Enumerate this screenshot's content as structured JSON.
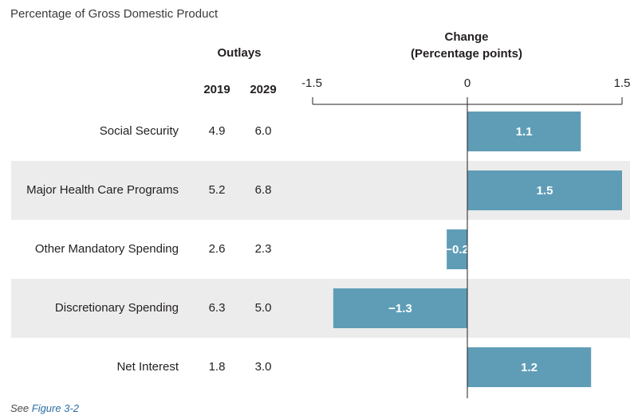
{
  "subtitle": "Percentage of Gross Domestic Product",
  "headers": {
    "outlays": "Outlays",
    "year1": "2019",
    "year2": "2029",
    "change_line1": "Change",
    "change_line2": "(Percentage points)"
  },
  "rows": [
    {
      "label": "Social Security",
      "v2019": "4.9",
      "v2029": "6.0"
    },
    {
      "label": "Major Health Care Programs",
      "v2019": "5.2",
      "v2029": "6.8"
    },
    {
      "label": "Other Mandatory Spending",
      "v2019": "2.6",
      "v2029": "2.3"
    },
    {
      "label": "Discretionary Spending",
      "v2019": "6.3",
      "v2029": "5.0"
    },
    {
      "label": "Net Interest",
      "v2019": "1.8",
      "v2029": "3.0"
    }
  ],
  "footnote": {
    "prefix": "See ",
    "link": "Figure 3-2"
  },
  "colors": {
    "bar": "#5f9db7",
    "bar_label": "#ffffff",
    "shade": "#ececec",
    "axis": "#231f20"
  },
  "chart_data": {
    "type": "bar",
    "orientation": "horizontal",
    "categories": [
      "Social Security",
      "Major Health Care Programs",
      "Other Mandatory Spending",
      "Discretionary Spending",
      "Net Interest"
    ],
    "values": [
      1.1,
      1.5,
      -0.2,
      -1.3,
      1.2
    ],
    "value_labels": [
      "1.1",
      "1.5",
      "−0.2",
      "−1.3",
      "1.2"
    ],
    "title": "Change\n(Percentage points)",
    "xlim": [
      -1.5,
      1.5
    ],
    "xticks": [
      -1.5,
      0,
      1.5
    ],
    "xtick_labels": [
      "-1.5",
      "0",
      "1.5"
    ],
    "grid": false
  }
}
